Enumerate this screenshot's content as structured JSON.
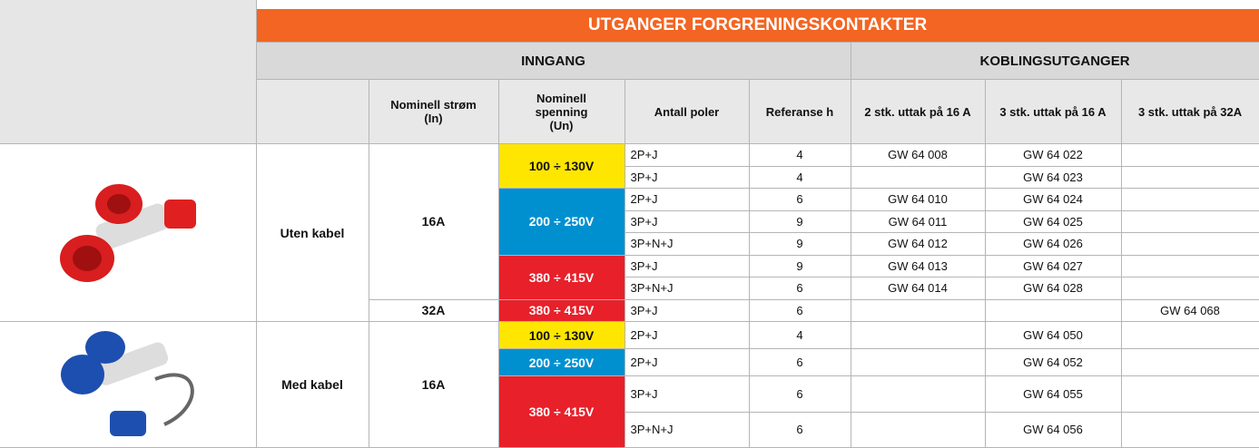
{
  "header": {
    "title": "UTGANGER FORGRENINGSKONTAKTER",
    "groups": [
      "INNGANG",
      "KOBLINGSUTGANGER"
    ],
    "columns": [
      "Nominell strøm (In)",
      "Nominell spenning (Un)",
      "Antall poler",
      "Referanse h",
      "2 stk. uttak på 16 A",
      "3 stk. uttak på 16 A",
      "3 stk. uttak på 32A"
    ]
  },
  "table": {
    "sections": [
      {
        "label": "Uten kabel",
        "groups": [
          {
            "current": "16A",
            "voltages": [
              {
                "voltage": "100 ÷ 130V",
                "color": "#ffe600",
                "rows": [
                  [
                    "2P+J",
                    4,
                    "GW 64 008",
                    "GW 64 022",
                    null
                  ],
                  [
                    "3P+J",
                    4,
                    null,
                    "GW 64 023",
                    null
                  ]
                ]
              },
              {
                "voltage": "200 ÷ 250V",
                "color": "#0090d0",
                "rows": [
                  [
                    "2P+J",
                    6,
                    "GW 64 010",
                    "GW 64 024",
                    null
                  ],
                  [
                    "3P+J",
                    9,
                    "GW 64 011",
                    "GW 64 025",
                    null
                  ],
                  [
                    "3P+N+J",
                    9,
                    "GW 64 012",
                    "GW 64 026",
                    null
                  ]
                ]
              },
              {
                "voltage": "380 ÷ 415V",
                "color": "#e8202a",
                "rows": [
                  [
                    "3P+J",
                    9,
                    "GW 64 013",
                    "GW 64 027",
                    null
                  ],
                  [
                    "3P+N+J",
                    6,
                    "GW 64 014",
                    "GW 64 028",
                    null
                  ]
                ]
              }
            ]
          },
          {
            "current": "32A",
            "voltages": [
              {
                "voltage": "380 ÷ 415V",
                "color": "#e8202a",
                "rows": [
                  [
                    "3P+J",
                    6,
                    null,
                    null,
                    "GW 64 068"
                  ]
                ]
              }
            ]
          }
        ]
      },
      {
        "label": "Med kabel",
        "groups": [
          {
            "current": "16A",
            "voltages": [
              {
                "voltage": "100 ÷ 130V",
                "color": "#ffe600",
                "rows": [
                  [
                    "2P+J",
                    4,
                    null,
                    "GW 64 050",
                    null
                  ]
                ]
              },
              {
                "voltage": "200 ÷ 250V",
                "color": "#0090d0",
                "rows": [
                  [
                    "2P+J",
                    6,
                    null,
                    "GW 64 052",
                    null
                  ]
                ]
              },
              {
                "voltage": "380 ÷ 415V",
                "color": "#e8202a",
                "rows": [
                  [
                    "3P+J",
                    6,
                    null,
                    "GW 64 055",
                    null
                  ],
                  [
                    "3P+N+J",
                    6,
                    null,
                    "GW 64 056",
                    null
                  ]
                ]
              }
            ]
          }
        ]
      }
    ]
  }
}
